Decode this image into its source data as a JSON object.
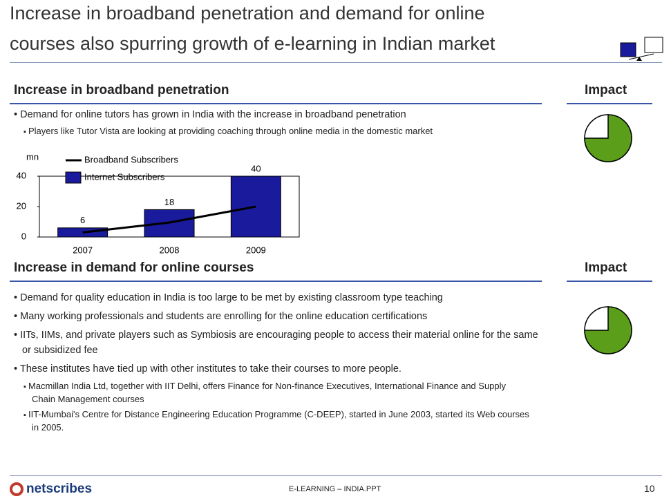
{
  "header": {
    "title_lines": [
      "Increase in broadband penetration and demand for online",
      "courses also spurring growth of e-learning in Indian market"
    ]
  },
  "sections": [
    {
      "heading": "Increase in broadband penetration",
      "impact_label": "Impact",
      "impact_value": 75,
      "bullets": [
        "Demand for online tutors has grown in India with the increase in broadband penetration"
      ],
      "sub_bullets": [
        "Players like Tutor Vista are looking at providing coaching through online media in the domestic market"
      ]
    },
    {
      "heading": "Increase in demand for online courses",
      "impact_label": "Impact",
      "impact_value": 75,
      "bullets": [
        "Demand for quality education in India is too large to be met by existing classroom type teaching",
        "Many working professionals and students are enrolling for the online education certifications",
        "IITs, IIMs, and private players such as Symbiosis are encouraging people to access their material online for the same or subsidized fee",
        "These institutes have tied up with other institutes to take their courses to more people."
      ],
      "sub_bullets": [
        "Macmillan India Ltd, together with IIT Delhi, offers Finance for Non-finance Executives, International Finance and Supply Chain Management courses",
        "IIT-Mumbai's Centre for Distance Engineering Education Programme (C-DEEP), started in June 2003, started its Web courses in 2005."
      ]
    }
  ],
  "chart_data": {
    "type": "bar_line",
    "y_label": "mn",
    "categories": [
      "2007",
      "2008",
      "2009"
    ],
    "series": [
      {
        "name": "Broadband Subscribers",
        "type": "line",
        "color": "#000000",
        "values": [
          3,
          9.5,
          20
        ]
      },
      {
        "name": "Internet Subscribers",
        "type": "bar",
        "color": "#1a1a9c",
        "values": [
          6,
          18,
          40
        ]
      }
    ],
    "ylim": [
      0,
      40
    ],
    "yticks": [
      0,
      20,
      40
    ]
  },
  "footer": {
    "logo": "netscribes",
    "file": "E-LEARNING – INDIA.PPT",
    "page": "10"
  }
}
